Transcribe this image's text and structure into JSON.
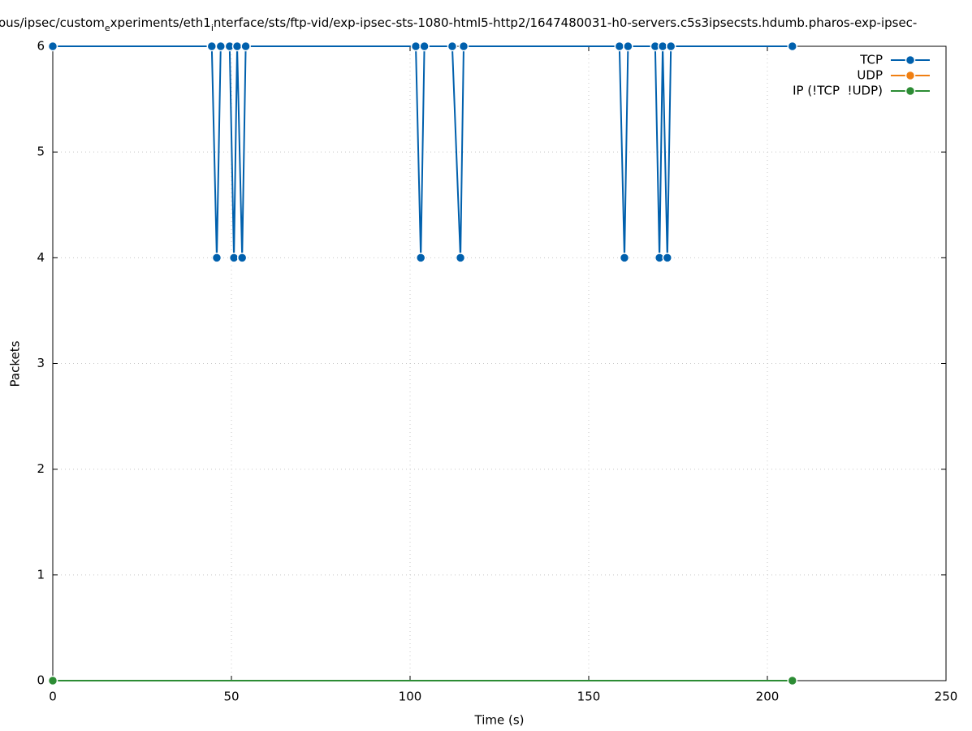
{
  "chart_data": {
    "type": "line",
    "title": [
      "ous/ipsec/custom",
      "e",
      "xperiments/eth1",
      "i",
      "nterface/sts/ftp-vid/exp-ipsec-sts-1080-html5-http2/1647480031-h0-servers.c5s3ipsecsts.hdumb.pharos-exp-ipsec-"
    ],
    "x_label": "Time (s)",
    "y_label": "Packets",
    "xlim": [
      0,
      250
    ],
    "xticks": [
      0,
      50,
      100,
      150,
      200,
      250
    ],
    "ylim": [
      0,
      6
    ],
    "yticks": [
      0,
      1,
      2,
      3,
      4,
      5,
      6
    ],
    "grid": true,
    "legend": "top-right",
    "series": [
      {
        "name": "TCP",
        "color": "#0060ad",
        "x": [
          0,
          44.5,
          45.9,
          47,
          49.5,
          50.7,
          51.6,
          53,
          54,
          101.6,
          103,
          104,
          111.8,
          114.1,
          115,
          158.6,
          160,
          161,
          168.6,
          169.8,
          170.7,
          172,
          173,
          207
        ],
        "values": [
          6,
          6,
          4,
          6,
          6,
          4,
          6,
          4,
          6,
          6,
          4,
          6,
          6,
          4,
          6,
          6,
          4,
          6,
          6,
          4,
          6,
          4,
          6,
          6
        ]
      },
      {
        "name": "UDP",
        "color": "#f07f12",
        "x": [],
        "values": []
      },
      {
        "name": "IP (!TCP  !UDP)",
        "color": "#2c8c34",
        "x": [
          0,
          207
        ],
        "values": [
          0,
          0
        ]
      }
    ]
  }
}
